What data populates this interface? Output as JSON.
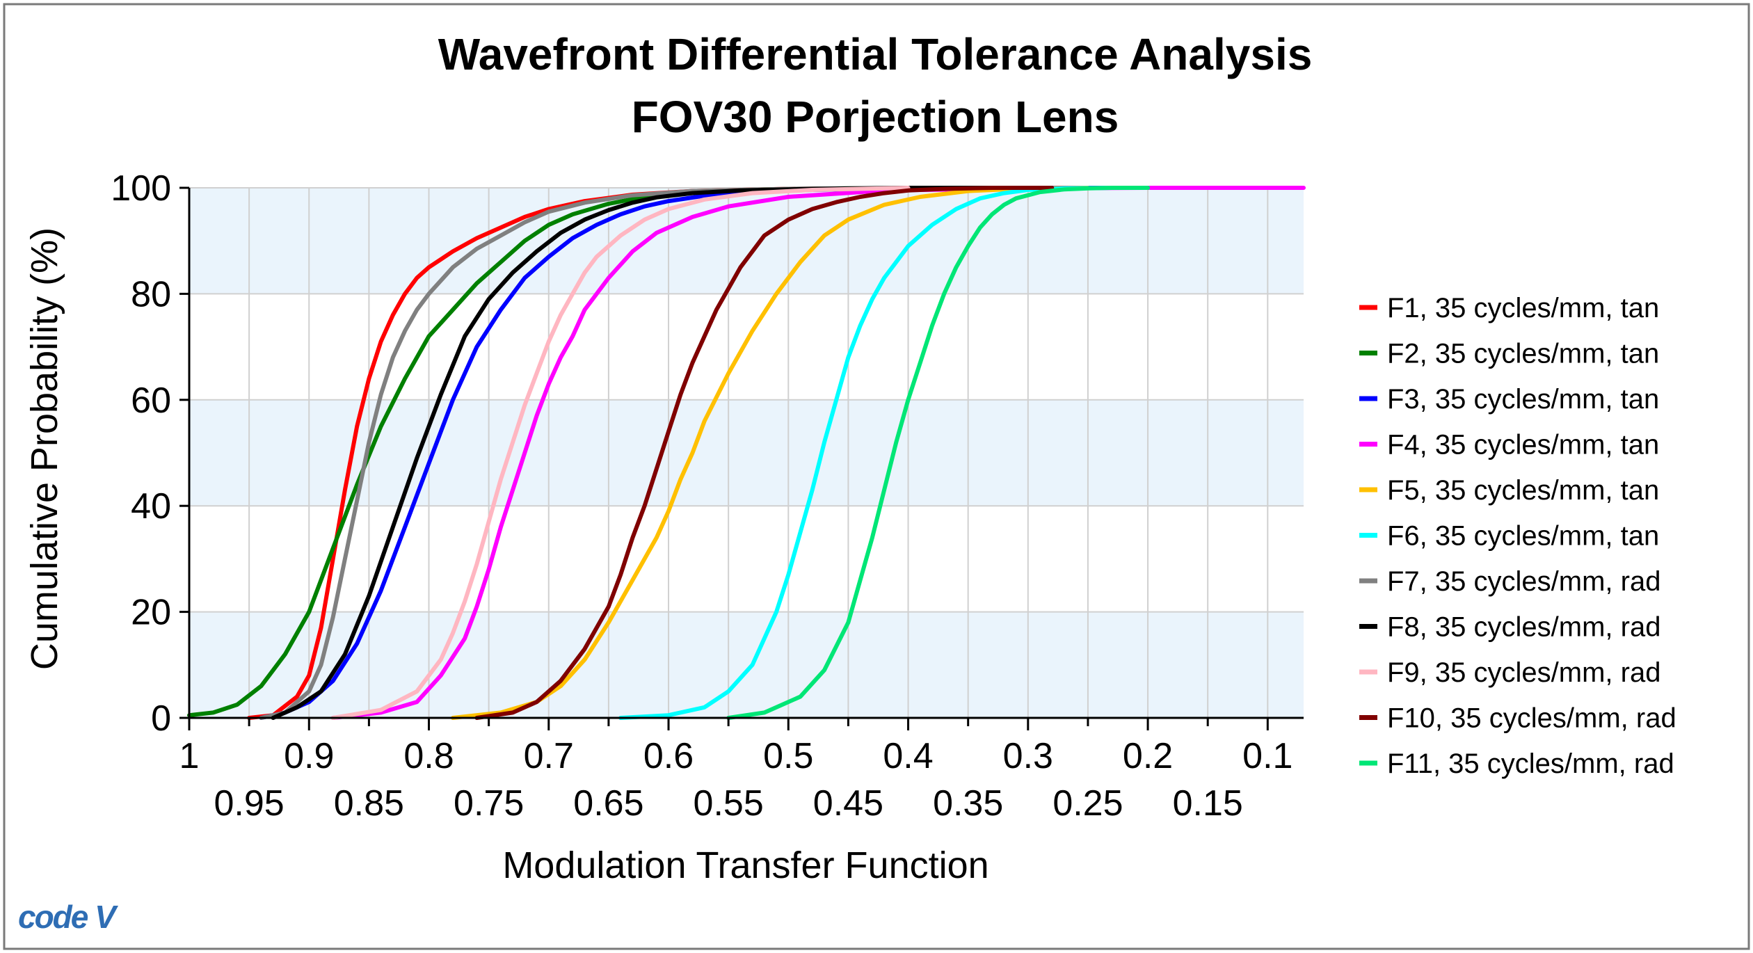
{
  "chart_data": {
    "type": "line",
    "title": "Wavefront Differential Tolerance Analysis",
    "subtitle": "FOV30 Porjection Lens",
    "xlabel": "Modulation Transfer Function",
    "ylabel": "Cumulative Probability (%)",
    "x_reversed": true,
    "xlim": [
      1.0,
      0.07
    ],
    "ylim": [
      0,
      100
    ],
    "x_ticks_major": [
      "1",
      "0.9",
      "0.8",
      "0.7",
      "0.6",
      "0.5",
      "0.4",
      "0.3",
      "0.2",
      "0.1"
    ],
    "x_ticks_minor": [
      "0.95",
      "0.85",
      "0.75",
      "0.65",
      "0.55",
      "0.45",
      "0.35",
      "0.25",
      "0.15"
    ],
    "y_ticks": [
      "0",
      "20",
      "40",
      "60",
      "80",
      "100"
    ],
    "grid": true,
    "legend_position": "right",
    "series": [
      {
        "name": "F1, 35 cycles/mm, tan",
        "color": "#ff0000",
        "x": [
          0.95,
          0.93,
          0.91,
          0.9,
          0.89,
          0.88,
          0.87,
          0.86,
          0.85,
          0.84,
          0.83,
          0.82,
          0.81,
          0.8,
          0.78,
          0.76,
          0.74,
          0.72,
          0.7,
          0.67,
          0.63,
          0.58,
          0.5,
          0.4,
          0.3,
          0.22
        ],
        "y": [
          0,
          0.5,
          4,
          8,
          17,
          30,
          43,
          55,
          64,
          71,
          76,
          80,
          83,
          85,
          88,
          90.5,
          92.5,
          94.5,
          96,
          97.5,
          98.7,
          99.4,
          99.8,
          99.95,
          100,
          100
        ]
      },
      {
        "name": "F2, 35 cycles/mm, tan",
        "color": "#008000",
        "x": [
          1.0,
          0.98,
          0.96,
          0.94,
          0.92,
          0.9,
          0.88,
          0.86,
          0.84,
          0.82,
          0.8,
          0.78,
          0.76,
          0.74,
          0.72,
          0.7,
          0.68,
          0.65,
          0.62,
          0.58,
          0.52,
          0.45,
          0.35,
          0.25
        ],
        "y": [
          0.5,
          1,
          2.5,
          6,
          12,
          20,
          32,
          44,
          55,
          64,
          72,
          77,
          82,
          86,
          90,
          93,
          95,
          97,
          98.3,
          99.2,
          99.7,
          99.9,
          100,
          100
        ]
      },
      {
        "name": "F3, 35 cycles/mm, tan",
        "color": "#0000ff",
        "x": [
          0.94,
          0.92,
          0.9,
          0.88,
          0.86,
          0.84,
          0.82,
          0.8,
          0.78,
          0.76,
          0.74,
          0.72,
          0.7,
          0.68,
          0.66,
          0.64,
          0.62,
          0.6,
          0.57,
          0.53,
          0.48,
          0.4,
          0.3,
          0.2,
          0.18
        ],
        "y": [
          0,
          1,
          3,
          7,
          14,
          24,
          36,
          48,
          60,
          70,
          77,
          83,
          87,
          90.5,
          93,
          95,
          96.5,
          97.5,
          98.5,
          99.2,
          99.6,
          99.9,
          100,
          100,
          100
        ]
      },
      {
        "name": "F4, 35 cycles/mm, tan",
        "color": "#ff00ff",
        "x": [
          0.88,
          0.84,
          0.81,
          0.79,
          0.77,
          0.76,
          0.75,
          0.74,
          0.73,
          0.72,
          0.71,
          0.7,
          0.69,
          0.68,
          0.67,
          0.65,
          0.63,
          0.61,
          0.58,
          0.55,
          0.5,
          0.42,
          0.3,
          0.2,
          0.1,
          0.07
        ],
        "y": [
          0,
          1,
          3,
          8,
          15,
          21,
          28,
          36,
          43,
          50,
          57,
          63,
          68,
          72,
          77,
          83,
          88,
          91.5,
          94.5,
          96.5,
          98.3,
          99.5,
          99.9,
          100,
          100,
          100
        ]
      },
      {
        "name": "F5, 35 cycles/mm, tan",
        "color": "#ffc000",
        "x": [
          0.78,
          0.74,
          0.71,
          0.69,
          0.67,
          0.65,
          0.63,
          0.61,
          0.6,
          0.59,
          0.58,
          0.57,
          0.55,
          0.53,
          0.51,
          0.49,
          0.47,
          0.45,
          0.42,
          0.39,
          0.35,
          0.3,
          0.25
        ],
        "y": [
          0,
          1,
          3,
          6,
          11,
          18,
          26,
          34,
          39,
          45,
          50,
          56,
          65,
          73,
          80,
          86,
          91,
          94,
          96.8,
          98.3,
          99.4,
          99.9,
          100
        ]
      },
      {
        "name": "F6, 35 cycles/mm, tan",
        "color": "#00ffff",
        "x": [
          0.64,
          0.6,
          0.57,
          0.55,
          0.53,
          0.51,
          0.5,
          0.49,
          0.48,
          0.47,
          0.46,
          0.45,
          0.44,
          0.43,
          0.42,
          0.41,
          0.4,
          0.38,
          0.36,
          0.34,
          0.32,
          0.3,
          0.27,
          0.23
        ],
        "y": [
          0,
          0.5,
          2,
          5,
          10,
          20,
          27,
          35,
          43,
          52,
          60,
          68,
          74,
          79,
          83,
          86,
          89,
          93,
          96,
          98,
          99,
          99.6,
          99.9,
          100
        ]
      },
      {
        "name": "F7, 35 cycles/mm, rad",
        "color": "#808080",
        "x": [
          0.94,
          0.92,
          0.9,
          0.89,
          0.88,
          0.87,
          0.86,
          0.85,
          0.84,
          0.83,
          0.82,
          0.81,
          0.8,
          0.78,
          0.76,
          0.74,
          0.72,
          0.7,
          0.67,
          0.63,
          0.58,
          0.5,
          0.4,
          0.3
        ],
        "y": [
          0,
          1,
          5,
          10,
          19,
          30,
          41,
          52,
          61,
          68,
          73,
          77,
          80,
          85,
          88.5,
          91,
          93.5,
          95.5,
          97.2,
          98.6,
          99.4,
          99.8,
          100,
          100
        ]
      },
      {
        "name": "F8, 35 cycles/mm, rad",
        "color": "#000000",
        "x": [
          0.93,
          0.91,
          0.89,
          0.87,
          0.85,
          0.83,
          0.81,
          0.79,
          0.77,
          0.75,
          0.73,
          0.71,
          0.69,
          0.67,
          0.65,
          0.63,
          0.61,
          0.58,
          0.54,
          0.48,
          0.4,
          0.3
        ],
        "y": [
          0,
          2,
          5,
          12,
          23,
          36,
          49,
          61,
          72,
          79,
          84,
          88,
          91.5,
          94,
          95.8,
          97.2,
          98.2,
          99,
          99.5,
          99.8,
          100,
          100
        ]
      },
      {
        "name": "F9, 35 cycles/mm, rad",
        "color": "#ffb6c1",
        "x": [
          0.88,
          0.84,
          0.81,
          0.79,
          0.78,
          0.77,
          0.76,
          0.75,
          0.74,
          0.73,
          0.72,
          0.71,
          0.7,
          0.69,
          0.68,
          0.67,
          0.66,
          0.64,
          0.62,
          0.6,
          0.57,
          0.53,
          0.48,
          0.4
        ],
        "y": [
          0,
          1.5,
          5,
          11,
          16,
          22,
          29,
          37,
          45,
          52,
          59,
          65,
          71,
          76,
          80,
          84,
          87,
          91,
          94,
          96,
          97.8,
          99,
          99.6,
          100
        ]
      },
      {
        "name": "F10, 35 cycles/mm, rad",
        "color": "#800000",
        "x": [
          0.76,
          0.73,
          0.71,
          0.69,
          0.67,
          0.65,
          0.64,
          0.63,
          0.62,
          0.61,
          0.6,
          0.59,
          0.58,
          0.57,
          0.56,
          0.55,
          0.54,
          0.53,
          0.52,
          0.5,
          0.48,
          0.46,
          0.44,
          0.42,
          0.4,
          0.37,
          0.33,
          0.28
        ],
        "y": [
          0,
          1,
          3,
          7,
          13,
          21,
          27,
          34,
          40,
          47,
          54,
          61,
          67,
          72,
          77,
          81,
          85,
          88,
          91,
          94,
          96,
          97.3,
          98.3,
          99,
          99.5,
          99.8,
          100,
          100
        ]
      },
      {
        "name": "F11, 35 cycles/mm, rad",
        "color": "#00e676",
        "x": [
          0.55,
          0.52,
          0.49,
          0.47,
          0.45,
          0.44,
          0.43,
          0.42,
          0.41,
          0.4,
          0.39,
          0.38,
          0.37,
          0.36,
          0.35,
          0.34,
          0.33,
          0.32,
          0.31,
          0.29,
          0.27,
          0.25,
          0.23,
          0.2
        ],
        "y": [
          0,
          1,
          4,
          9,
          18,
          26,
          34,
          43,
          52,
          60,
          67,
          74,
          80,
          85,
          89,
          92.5,
          95,
          96.8,
          98,
          99.2,
          99.7,
          99.9,
          100,
          100
        ]
      }
    ]
  },
  "logo": {
    "text": "code V",
    "color": "#2e6db4"
  }
}
